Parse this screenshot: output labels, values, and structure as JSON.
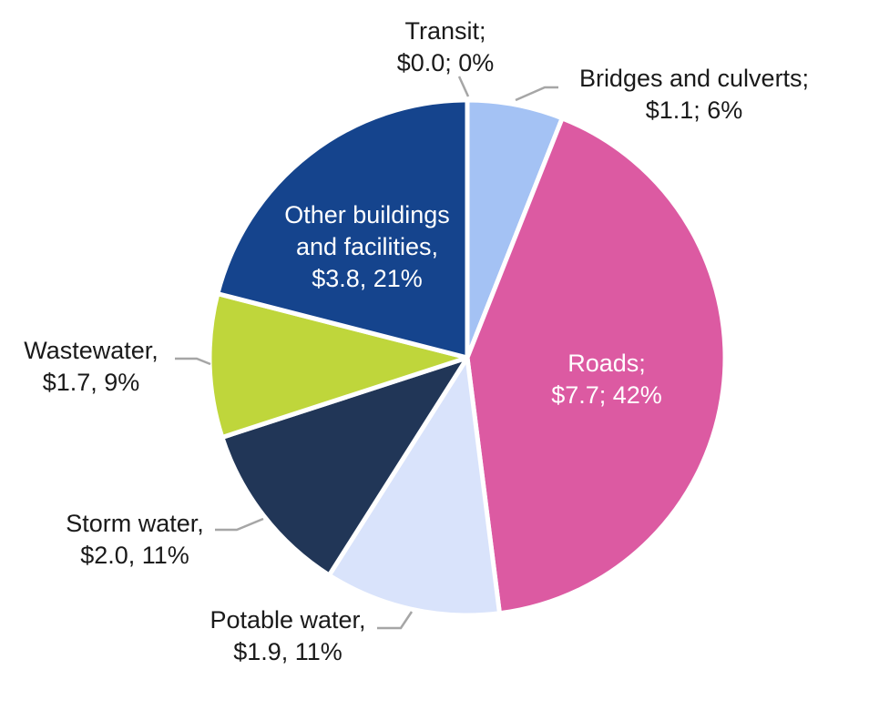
{
  "chart_data": {
    "type": "pie",
    "title": "",
    "slices": [
      {
        "name": "Transit",
        "value": 0.0,
        "percent": 0,
        "color": "#b9cdfb",
        "label_lines": [
          "Transit;",
          "$0.0; 0%"
        ]
      },
      {
        "name": "Bridges and culverts",
        "value": 1.1,
        "percent": 6,
        "color": "#a4c2f4",
        "label_lines": [
          "Bridges and culverts;",
          "$1.1; 6%"
        ]
      },
      {
        "name": "Roads",
        "value": 7.7,
        "percent": 42,
        "color": "#dc5aa2",
        "label_lines": [
          "Roads;",
          "$7.7; 42%"
        ]
      },
      {
        "name": "Potable water",
        "value": 1.9,
        "percent": 11,
        "color": "#d9e3fb",
        "label_lines": [
          "Potable water,",
          "$1.9, 11%"
        ]
      },
      {
        "name": "Storm water",
        "value": 2.0,
        "percent": 11,
        "color": "#213657",
        "label_lines": [
          "Storm water,",
          "$2.0, 11%"
        ]
      },
      {
        "name": "Wastewater",
        "value": 1.7,
        "percent": 9,
        "color": "#bfd63b",
        "label_lines": [
          "Wastewater,",
          "$1.7, 9%"
        ]
      },
      {
        "name": "Other buildings and facilities",
        "value": 3.8,
        "percent": 21,
        "color": "#15448d",
        "label_lines": [
          "Other buildings",
          "and facilities,",
          "$3.8, 21%"
        ]
      }
    ]
  }
}
